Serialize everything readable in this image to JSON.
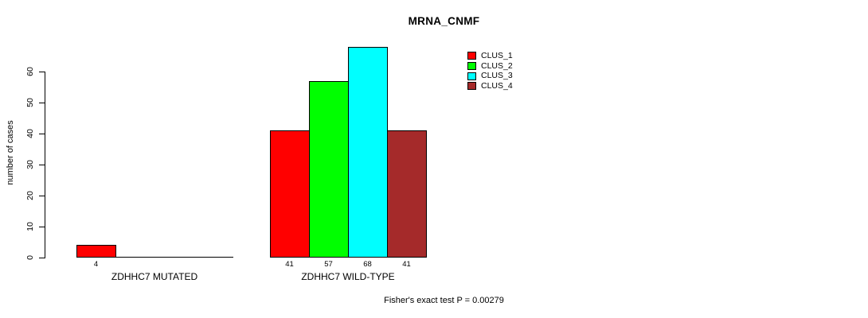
{
  "chart_data": {
    "type": "bar",
    "title": "MRNA_CNMF",
    "ylabel": "number of cases",
    "xlabel": "",
    "ylim": [
      0,
      60
    ],
    "yticks": [
      0,
      10,
      20,
      30,
      40,
      50,
      60
    ],
    "grid": false,
    "categories": [
      "ZDHHC7 MUTATED",
      "ZDHHC7 WILD-TYPE"
    ],
    "series": [
      {
        "name": "CLUS_1",
        "color": "#FF0000",
        "values": [
          4,
          41
        ]
      },
      {
        "name": "CLUS_2",
        "color": "#00FF00",
        "values": [
          0,
          57
        ]
      },
      {
        "name": "CLUS_3",
        "color": "#00FFFF",
        "values": [
          0,
          68
        ]
      },
      {
        "name": "CLUS_4",
        "color": "#A52A2A",
        "values": [
          0,
          41
        ]
      }
    ],
    "show_value_labels": true,
    "legend_position": "top-right",
    "footnote": "Fisher's exact test P = 0.00279"
  }
}
